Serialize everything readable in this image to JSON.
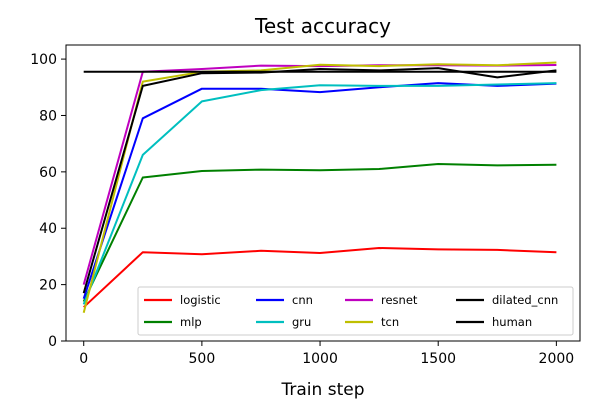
{
  "chart_data": {
    "type": "line",
    "title": "Test accuracy",
    "xlabel": "Train step",
    "ylabel": "",
    "xlim": [
      -75,
      2100
    ],
    "ylim": [
      0,
      105
    ],
    "xticks": [
      0,
      500,
      1000,
      1500,
      2000
    ],
    "yticks": [
      0,
      20,
      40,
      60,
      80,
      100
    ],
    "grid": false,
    "legend_position": "lower-right",
    "legend_columns": 4,
    "series": [
      {
        "name": "logistic",
        "color": "#ff0000",
        "x": [
          0,
          250,
          500,
          750,
          1000,
          1250,
          1500,
          1750,
          2000
        ],
        "y": [
          12,
          31.5,
          30.8,
          32,
          31.2,
          33,
          32.5,
          32.3,
          31.5
        ]
      },
      {
        "name": "mlp",
        "color": "#008000",
        "x": [
          0,
          250,
          500,
          750,
          1000,
          1250,
          1500,
          1750,
          2000
        ],
        "y": [
          14,
          58,
          60.3,
          60.8,
          60.6,
          61,
          62.8,
          62.3,
          62.5
        ]
      },
      {
        "name": "cnn",
        "color": "#0000ff",
        "x": [
          0,
          250,
          500,
          750,
          1000,
          1250,
          1500,
          1750,
          2000
        ],
        "y": [
          15,
          79,
          89.5,
          89.5,
          88.3,
          90,
          91.5,
          90.5,
          91.3
        ]
      },
      {
        "name": "gru",
        "color": "#00bfbf",
        "x": [
          0,
          250,
          500,
          750,
          1000,
          1250,
          1500,
          1750,
          2000
        ],
        "y": [
          13,
          66,
          85,
          89,
          90.7,
          90.5,
          90.5,
          91,
          91.5
        ]
      },
      {
        "name": "resnet",
        "color": "#bf00bf",
        "x": [
          0,
          250,
          500,
          750,
          1000,
          1250,
          1500,
          1750,
          2000
        ],
        "y": [
          20,
          95.5,
          96.5,
          97.7,
          97.5,
          97.8,
          97.8,
          97.7,
          97.9
        ]
      },
      {
        "name": "tcn",
        "color": "#bfbf00",
        "x": [
          0,
          250,
          500,
          750,
          1000,
          1250,
          1500,
          1750,
          2000
        ],
        "y": [
          10,
          92,
          95.5,
          96,
          98,
          97.5,
          98.2,
          97.8,
          98.8
        ]
      },
      {
        "name": "dilated_cnn",
        "color": "#000000",
        "x": [
          0,
          250,
          500,
          750,
          1000,
          1250,
          1500,
          1750,
          2000
        ],
        "y": [
          17,
          90.5,
          95,
          95.2,
          96.5,
          96,
          96.8,
          93.5,
          96
        ]
      },
      {
        "name": "human",
        "color": "#000000",
        "x": [
          0,
          2000
        ],
        "y": [
          95.5,
          95.5
        ]
      }
    ]
  }
}
